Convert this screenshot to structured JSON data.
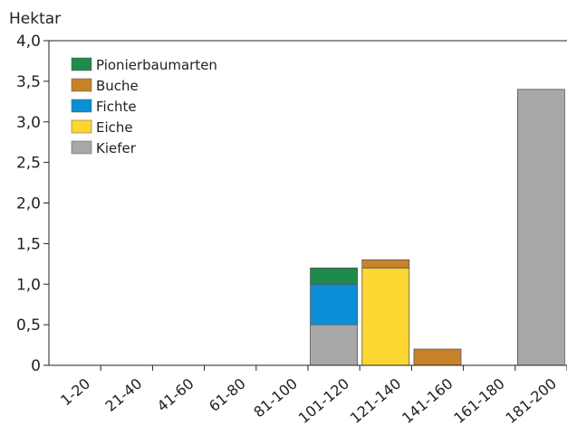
{
  "chart_data": {
    "type": "bar",
    "stacked": true,
    "title": "",
    "xlabel": "",
    "ylabel": "Hektar",
    "ylim": [
      0,
      4.0
    ],
    "yticks": [
      "0",
      "0,5",
      "1,0",
      "1,5",
      "2,0",
      "2,5",
      "3,0",
      "3,5",
      "4,0"
    ],
    "categories": [
      "1-20",
      "21-40",
      "41-60",
      "61-80",
      "81-100",
      "101-120",
      "121-140",
      "141-160",
      "161-180",
      "181-200"
    ],
    "series": [
      {
        "name": "Kiefer",
        "color": "#a8a8aa",
        "values": [
          0,
          0,
          0,
          0,
          0,
          0.5,
          0,
          0,
          0,
          3.4
        ]
      },
      {
        "name": "Eiche",
        "color": "#fdd731",
        "values": [
          0,
          0,
          0,
          0,
          0,
          0,
          1.2,
          0,
          0,
          0
        ]
      },
      {
        "name": "Fichte",
        "color": "#0a8fd6",
        "values": [
          0,
          0,
          0,
          0,
          0,
          0.5,
          0,
          0,
          0,
          0
        ]
      },
      {
        "name": "Buche",
        "color": "#c8822a",
        "values": [
          0,
          0,
          0,
          0,
          0,
          0,
          0.1,
          0.2,
          0,
          0
        ]
      },
      {
        "name": "Pionierbaumarten",
        "color": "#1e8a4c",
        "values": [
          0,
          0,
          0,
          0,
          0,
          0.2,
          0,
          0,
          0,
          0
        ]
      }
    ],
    "legend": {
      "placement": "top-left",
      "order": [
        "Pionierbaumarten",
        "Buche",
        "Fichte",
        "Eiche",
        "Kiefer"
      ]
    },
    "grid": false
  }
}
